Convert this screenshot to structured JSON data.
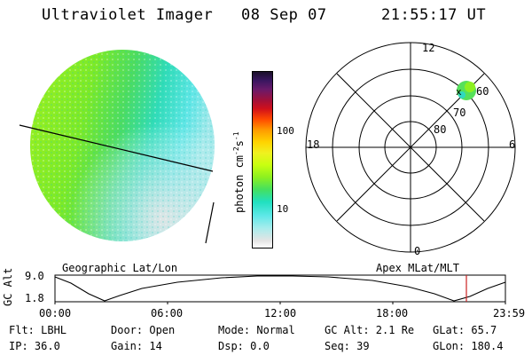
{
  "header": {
    "instrument": "Ultraviolet Imager",
    "date": "08 Sep 07",
    "time": "21:55:17 UT"
  },
  "colorbar": {
    "unit": "photon cm^-2 s^-1",
    "unit_base": "photon cm",
    "unit_exp1": "-2",
    "unit_mid": "s",
    "unit_exp2": "-1",
    "ticks": [
      "100",
      "10"
    ]
  },
  "polar_plot": {
    "mlt_labels": {
      "top": "12",
      "right": "6",
      "bottom": "0",
      "left": "18"
    },
    "lat_labels": [
      "60",
      "70",
      "80"
    ]
  },
  "timeline": {
    "left_label": "Geographic Lat/Lon",
    "right_label": "Apex MLat/MLT",
    "axis_title": "GC Alt",
    "y_ticks": [
      "9.0",
      "1.8"
    ],
    "x_ticks": [
      "00:00",
      "06:00",
      "12:00",
      "18:00",
      "23:59"
    ],
    "marker_color": "#cc2222"
  },
  "info": {
    "filter": "Flt: LBHL",
    "door": "Door: Open",
    "mode": "Mode: Normal",
    "gc_alt": "GC Alt: 2.1 Re",
    "glat": "GLat: 65.7",
    "ip": "IP: 36.0",
    "gain": "Gain: 14",
    "dsp": "Dsp:   0.0",
    "seq": "Seq: 39",
    "glon": "GLon: 180.4"
  }
}
